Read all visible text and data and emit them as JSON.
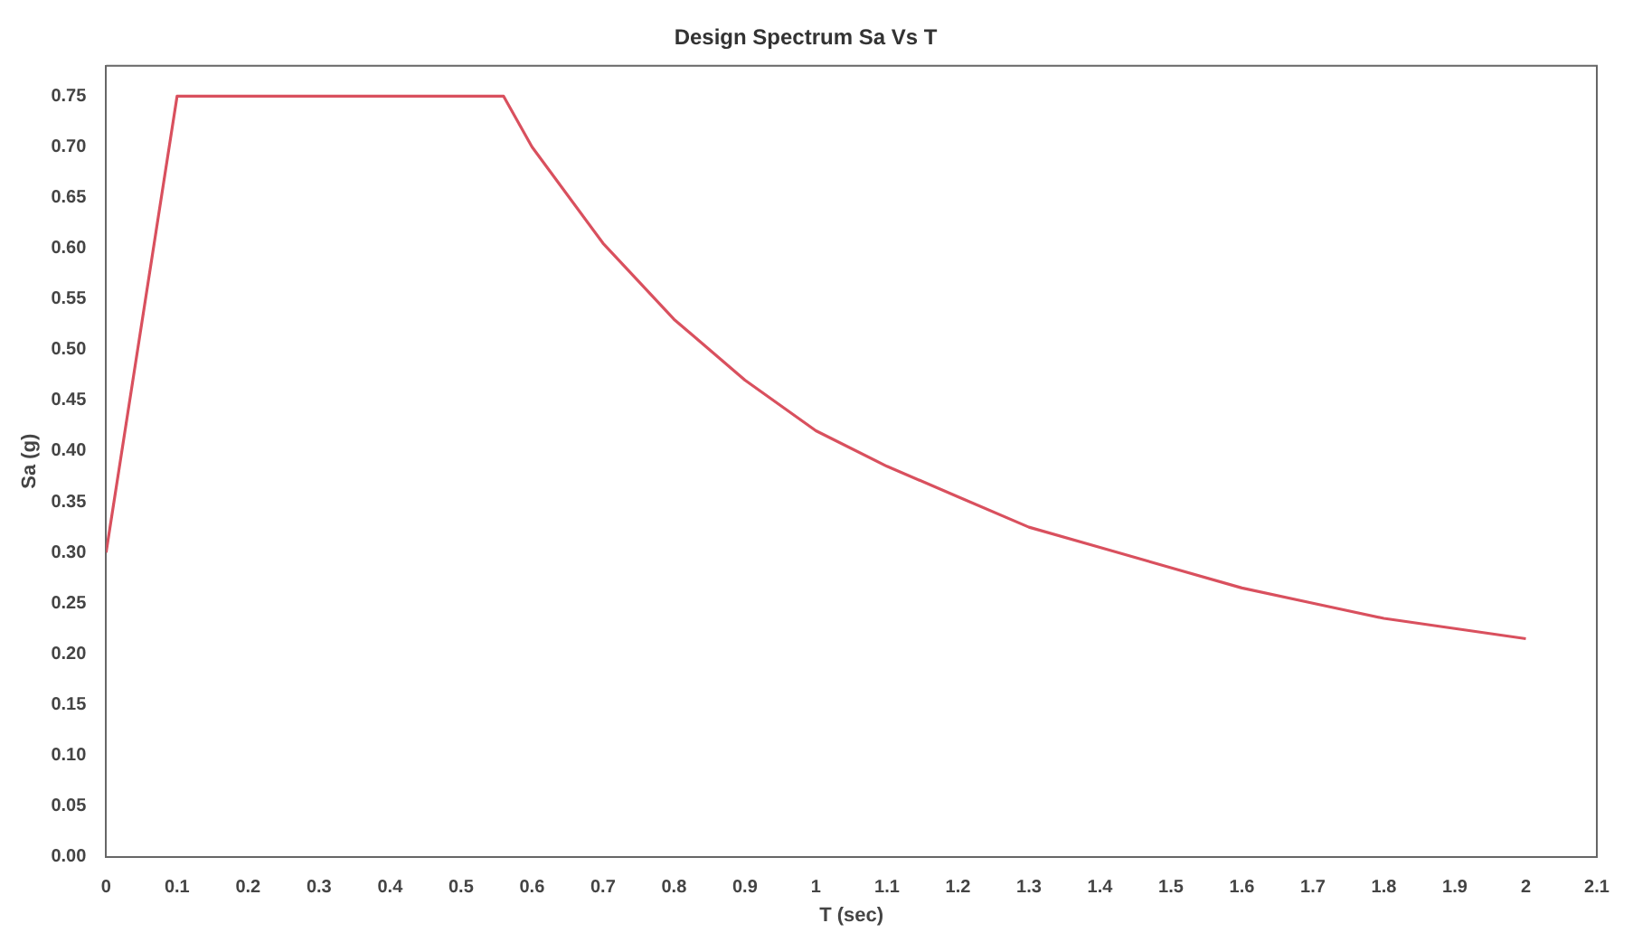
{
  "chart_data": {
    "type": "line",
    "title": "Design Spectrum Sa Vs T",
    "xlabel": "T (sec)",
    "ylabel": "Sa (g)",
    "x": [
      0,
      0.1,
      0.56,
      0.6,
      0.7,
      0.8,
      0.9,
      1.0,
      1.1,
      1.2,
      1.3,
      1.4,
      1.5,
      1.6,
      1.7,
      1.8,
      1.9,
      2.0
    ],
    "series": [
      {
        "color": "#d9505e",
        "values": [
          0.3,
          0.75,
          0.75,
          0.7,
          0.605,
          0.53,
          0.47,
          0.42,
          0.385,
          0.355,
          0.325,
          0.305,
          0.285,
          0.265,
          0.25,
          0.235,
          0.225,
          0.215
        ]
      }
    ],
    "xlim": [
      0,
      2.1
    ],
    "xticks": [
      {
        "value": 0,
        "label": "0"
      },
      0.1,
      0.2,
      0.3,
      0.4,
      0.5,
      0.6,
      0.7,
      0.8,
      0.9,
      {
        "value": 1,
        "label": "1"
      },
      1.1,
      1.2,
      1.3,
      1.4,
      1.5,
      1.6,
      1.7,
      1.8,
      1.9,
      {
        "value": 2,
        "label": "2"
      },
      2.1
    ],
    "ylim": [
      0,
      0.78
    ],
    "yticks": [
      {
        "value": 0,
        "label": "0.00"
      },
      {
        "value": 0.05,
        "label": "0.05"
      },
      {
        "value": 0.1,
        "label": "0.10"
      },
      {
        "value": 0.15,
        "label": "0.15"
      },
      {
        "value": 0.2,
        "label": "0.20"
      },
      {
        "value": 0.25,
        "label": "0.25"
      },
      {
        "value": 0.3,
        "label": "0.30"
      },
      {
        "value": 0.35,
        "label": "0.35"
      },
      {
        "value": 0.4,
        "label": "0.40"
      },
      {
        "value": 0.45,
        "label": "0.45"
      },
      {
        "value": 0.5,
        "label": "0.50"
      },
      {
        "value": 0.55,
        "label": "0.55"
      },
      {
        "value": 0.6,
        "label": "0.60"
      },
      {
        "value": 0.65,
        "label": "0.65"
      },
      {
        "value": 0.7,
        "label": "0.70"
      },
      {
        "value": 0.75,
        "label": "0.75"
      }
    ],
    "grid": false,
    "legend": false,
    "marker": "none",
    "line_style": "solid"
  }
}
